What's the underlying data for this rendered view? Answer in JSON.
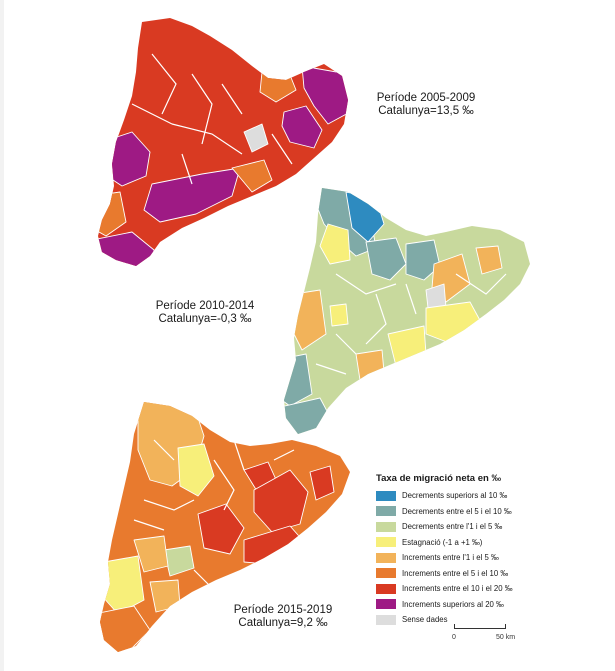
{
  "colors": {
    "dec_sup_10": "#2e8bc0",
    "dec_5_10": "#7faaa7",
    "dec_1_5": "#c8d99d",
    "stagnation": "#f7ef7a",
    "inc_1_5": "#f2b35a",
    "inc_5_10": "#e87a2e",
    "inc_10_20": "#d93a22",
    "inc_sup_20": "#9e1a84",
    "no_data": "#dddddd"
  },
  "maps": [
    {
      "period": "Període 2005-2009",
      "total": "Catalunya=13,5 ‰",
      "dominant": "inc_10_20"
    },
    {
      "period": "Període 2010-2014",
      "total": "Catalunya=-0,3 ‰",
      "dominant": "dec_1_5"
    },
    {
      "period": "Període 2015-2019",
      "total": "Catalunya=9,2 ‰",
      "dominant": "inc_5_10"
    }
  ],
  "legend": {
    "title": "Taxa de migració neta en ‰",
    "items": [
      {
        "key": "dec_sup_10",
        "label": "Decrements superiors al 10 ‰"
      },
      {
        "key": "dec_5_10",
        "label": "Decrements entre el 5 i el 10 ‰"
      },
      {
        "key": "dec_1_5",
        "label": "Decrements entre l'1 i el 5 ‰"
      },
      {
        "key": "stagnation",
        "label": "Estagnació (-1 a +1 ‰)"
      },
      {
        "key": "inc_1_5",
        "label": "Increments entre l'1 i el 5 ‰"
      },
      {
        "key": "inc_5_10",
        "label": "Increments entre el 5 i el 10 ‰"
      },
      {
        "key": "inc_10_20",
        "label": "Increments entre el 10 i el 20 ‰"
      },
      {
        "key": "inc_sup_20",
        "label": "Increments superiors al 20 ‰"
      },
      {
        "key": "no_data",
        "label": "Sense dades"
      }
    ]
  },
  "scale": {
    "start": "0",
    "end": "50 km"
  }
}
